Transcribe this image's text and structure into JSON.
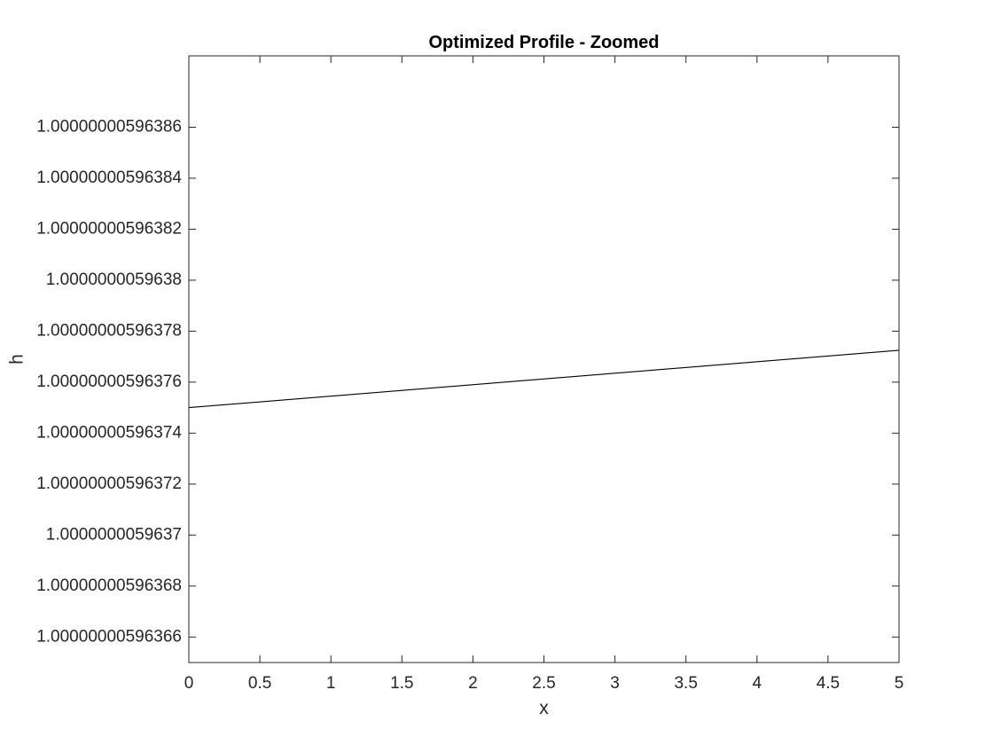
{
  "colors": {
    "background": "#ffffff",
    "axes": "#262626",
    "line": "#000000"
  },
  "chart_data": {
    "type": "line",
    "title": "Optimized Profile - Zoomed",
    "xlabel": "x",
    "ylabel": "h",
    "xlim": [
      0,
      5
    ],
    "ylim_offset": {
      "base": 1.0000000059636,
      "units": 1e-15,
      "range": [
        650,
        888
      ]
    },
    "grid": false,
    "x_ticks": [
      0,
      0.5,
      1,
      1.5,
      2,
      2.5,
      3,
      3.5,
      4,
      4.5,
      5
    ],
    "x_tick_labels": [
      "0",
      "0.5",
      "1",
      "1.5",
      "2",
      "2.5",
      "3",
      "3.5",
      "4",
      "4.5",
      "5"
    ],
    "y_ticks_offset": [
      660,
      680,
      700,
      720,
      740,
      760,
      780,
      800,
      820,
      840,
      860
    ],
    "y_tick_labels": [
      "1.00000000596366",
      "1.00000000596368",
      "1.0000000059637",
      "1.00000000596372",
      "1.00000000596374",
      "1.00000000596376",
      "1.00000000596378",
      "1.0000000059638",
      "1.00000000596382",
      "1.00000000596384",
      "1.00000000596386"
    ],
    "series": [
      {
        "name": "h",
        "x": [
          0,
          5
        ],
        "y_offset": [
          750,
          772.5
        ]
      }
    ]
  }
}
